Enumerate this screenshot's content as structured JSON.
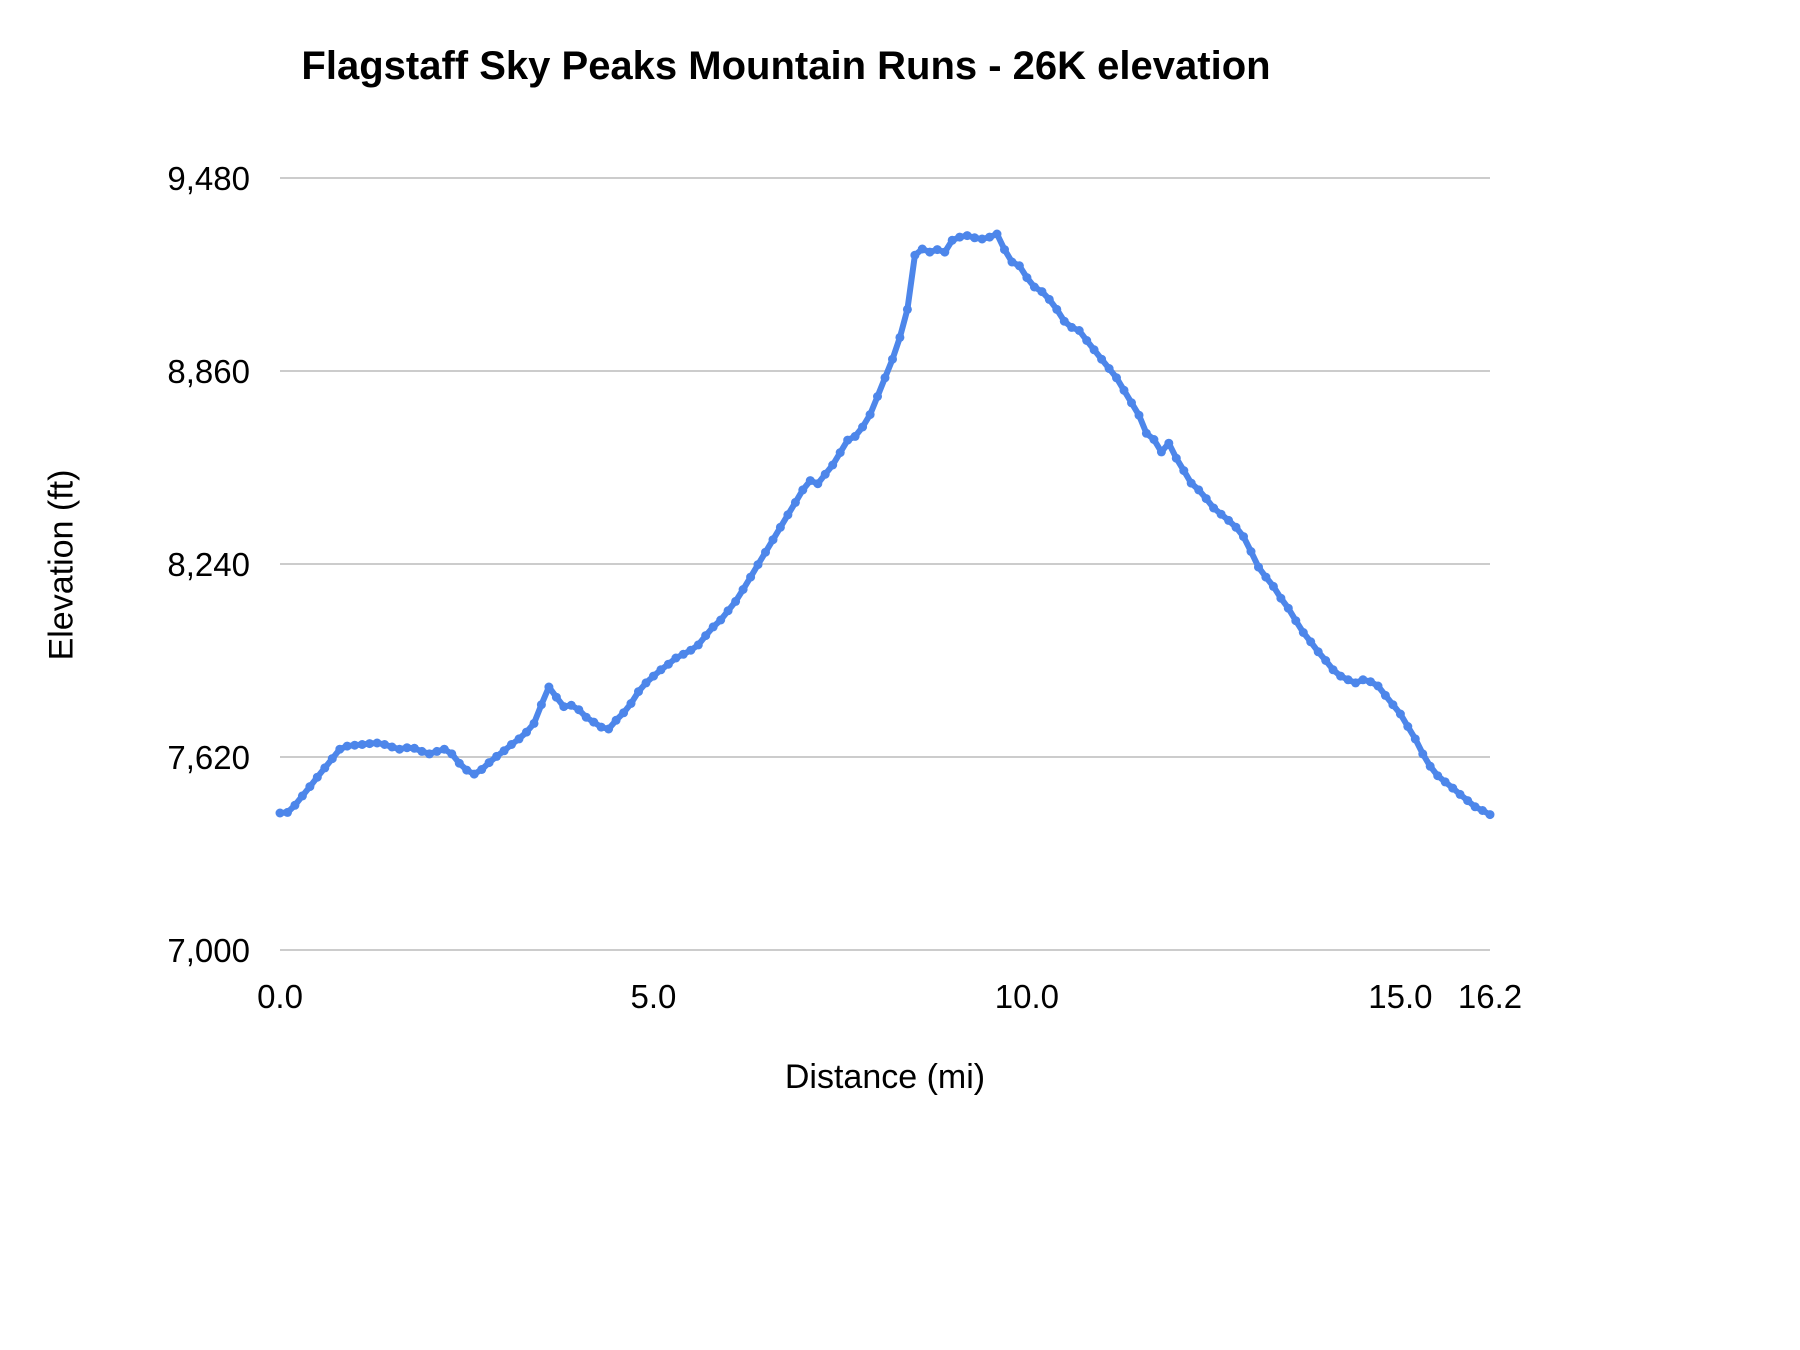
{
  "title": "Flagstaff Sky Peaks Mountain Runs - 26K elevation",
  "chart_data": {
    "type": "line",
    "title": "Flagstaff Sky Peaks Mountain Runs - 26K elevation",
    "xlabel": "Distance (mi)",
    "ylabel": "Elevation (ft)",
    "xlim": [
      0,
      16.2
    ],
    "ylim": [
      7000,
      9480
    ],
    "x_ticks": [
      {
        "value": 0.0,
        "label": "0.0"
      },
      {
        "value": 5.0,
        "label": "5.0"
      },
      {
        "value": 10.0,
        "label": "10.0"
      },
      {
        "value": 15.0,
        "label": "15.0"
      },
      {
        "value": 16.2,
        "label": "16.2"
      }
    ],
    "y_ticks": [
      {
        "value": 7000,
        "label": "7,000"
      },
      {
        "value": 7620,
        "label": "7,620"
      },
      {
        "value": 8240,
        "label": "8,240"
      },
      {
        "value": 8860,
        "label": "8,860"
      },
      {
        "value": 9480,
        "label": "9,480"
      }
    ],
    "grid": true,
    "legend_position": "none",
    "line_color": "#4d86ea",
    "grid_color": "#cccccc",
    "series": [
      {
        "name": "Elevation",
        "x": [
          0.0,
          0.1,
          0.2,
          0.3,
          0.4,
          0.5,
          0.6,
          0.7,
          0.8,
          0.9,
          1.0,
          1.1,
          1.2,
          1.3,
          1.4,
          1.5,
          1.6,
          1.7,
          1.8,
          1.9,
          2.0,
          2.1,
          2.2,
          2.3,
          2.4,
          2.5,
          2.6,
          2.7,
          2.8,
          2.9,
          3.0,
          3.1,
          3.2,
          3.3,
          3.4,
          3.5,
          3.6,
          3.7,
          3.8,
          3.9,
          4.0,
          4.1,
          4.2,
          4.3,
          4.4,
          4.5,
          4.6,
          4.7,
          4.8,
          4.9,
          5.0,
          5.1,
          5.2,
          5.3,
          5.4,
          5.5,
          5.6,
          5.7,
          5.8,
          5.9,
          6.0,
          6.1,
          6.2,
          6.3,
          6.4,
          6.5,
          6.6,
          6.7,
          6.8,
          6.9,
          7.0,
          7.1,
          7.2,
          7.3,
          7.4,
          7.5,
          7.6,
          7.7,
          7.8,
          7.9,
          8.0,
          8.1,
          8.2,
          8.3,
          8.4,
          8.5,
          8.6,
          8.7,
          8.8,
          8.9,
          9.0,
          9.1,
          9.2,
          9.3,
          9.4,
          9.5,
          9.6,
          9.7,
          9.8,
          9.9,
          10.0,
          10.1,
          10.2,
          10.3,
          10.4,
          10.5,
          10.6,
          10.7,
          10.8,
          10.9,
          11.0,
          11.1,
          11.2,
          11.3,
          11.4,
          11.5,
          11.6,
          11.7,
          11.8,
          11.9,
          12.0,
          12.1,
          12.2,
          12.3,
          12.4,
          12.5,
          12.6,
          12.7,
          12.8,
          12.9,
          13.0,
          13.1,
          13.2,
          13.3,
          13.4,
          13.5,
          13.6,
          13.7,
          13.8,
          13.9,
          14.0,
          14.1,
          14.2,
          14.3,
          14.4,
          14.5,
          14.6,
          14.7,
          14.8,
          14.9,
          15.0,
          15.1,
          15.2,
          15.3,
          15.4,
          15.5,
          15.6,
          15.7,
          15.8,
          15.9,
          16.0,
          16.1,
          16.2
        ],
        "y": [
          7440,
          7442,
          7465,
          7495,
          7525,
          7555,
          7585,
          7615,
          7645,
          7655,
          7658,
          7660,
          7663,
          7665,
          7660,
          7652,
          7645,
          7650,
          7648,
          7638,
          7630,
          7638,
          7645,
          7630,
          7600,
          7578,
          7565,
          7580,
          7602,
          7622,
          7640,
          7660,
          7678,
          7700,
          7728,
          7788,
          7845,
          7812,
          7782,
          7786,
          7772,
          7748,
          7732,
          7716,
          7710,
          7738,
          7762,
          7792,
          7830,
          7858,
          7880,
          7900,
          7918,
          7938,
          7950,
          7963,
          7980,
          8010,
          8038,
          8060,
          8090,
          8120,
          8158,
          8198,
          8238,
          8278,
          8318,
          8358,
          8398,
          8438,
          8478,
          8508,
          8498,
          8528,
          8558,
          8598,
          8638,
          8650,
          8680,
          8720,
          8778,
          8838,
          8898,
          8968,
          9058,
          9232,
          9252,
          9242,
          9250,
          9242,
          9280,
          9290,
          9295,
          9288,
          9284,
          9290,
          9300,
          9250,
          9210,
          9198,
          9160,
          9130,
          9115,
          9090,
          9058,
          9020,
          9000,
          8990,
          8958,
          8928,
          8898,
          8868,
          8838,
          8798,
          8758,
          8718,
          8660,
          8640,
          8600,
          8628,
          8580,
          8540,
          8500,
          8478,
          8450,
          8420,
          8400,
          8380,
          8358,
          8328,
          8280,
          8230,
          8198,
          8168,
          8130,
          8098,
          8058,
          8020,
          7990,
          7958,
          7930,
          7900,
          7880,
          7868,
          7858,
          7868,
          7862,
          7848,
          7818,
          7788,
          7758,
          7718,
          7678,
          7630,
          7590,
          7560,
          7540,
          7520,
          7500,
          7480,
          7460,
          7448,
          7435
        ]
      }
    ]
  }
}
